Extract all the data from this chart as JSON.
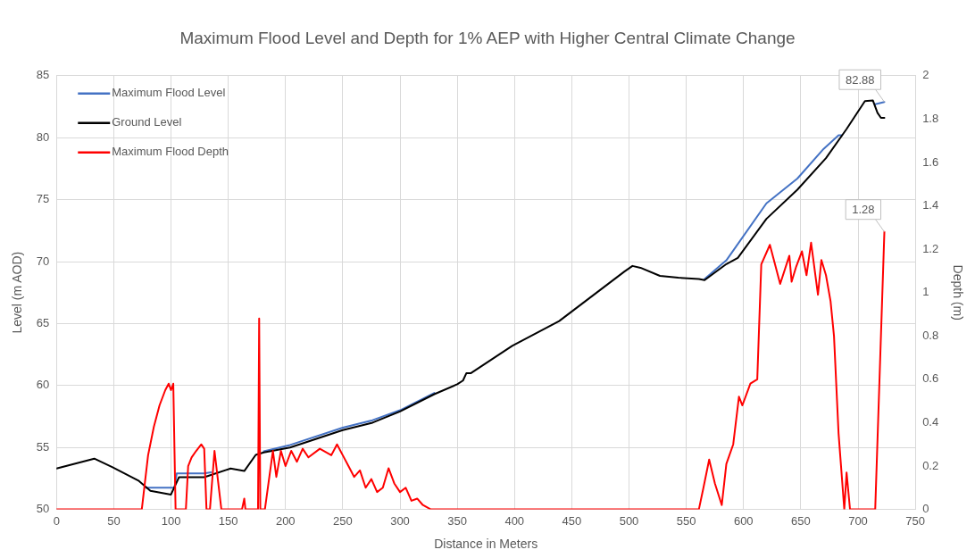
{
  "chart_data": {
    "type": "line",
    "title": "Maximum Flood Level and Depth for 1% AEP with Higher Central Climate Change",
    "xlabel": "Distance in Meters",
    "ylabel": "Level (m AOD)",
    "y2label": "Depth (m)",
    "xlim": [
      0,
      750
    ],
    "xticks": [
      0,
      50,
      100,
      150,
      200,
      250,
      300,
      350,
      400,
      450,
      500,
      550,
      600,
      650,
      700,
      750
    ],
    "ylim": [
      50,
      85
    ],
    "yticks": [
      50,
      55,
      60,
      65,
      70,
      75,
      80,
      85
    ],
    "y2lim": [
      0,
      2
    ],
    "y2ticks": [
      0,
      0.2,
      0.4,
      0.6,
      0.8,
      1,
      1.2,
      1.4,
      1.6,
      1.8,
      2
    ],
    "grid": true,
    "legend": "top left",
    "marker": "none",
    "line_style": "solid",
    "series": [
      {
        "name": "Maximum Flood Level",
        "color": "#4472c4",
        "value_labels": [
          null,
          null,
          null,
          null,
          null,
          null,
          null,
          null,
          null,
          null,
          null,
          null,
          null,
          null,
          null,
          null,
          null,
          null,
          null,
          null,
          null,
          null,
          null,
          "82.88"
        ],
        "x": [
          78,
          103,
          105,
          108,
          129,
          135,
          152,
          181,
          204,
          250,
          276,
          300,
          330,
          350,
          566,
          585,
          620,
          647,
          670,
          683,
          686,
          706,
          715,
          723
        ],
        "values": [
          51.75,
          51.75,
          52.9,
          52.9,
          52.9,
          53.0,
          null,
          54.7,
          55.2,
          56.6,
          57.2,
          58.0,
          59.4,
          null,
          68.6,
          70.1,
          74.7,
          76.7,
          79.1,
          80.2,
          80.2,
          null,
          82.7,
          82.88
        ]
      },
      {
        "name": "Ground Level",
        "color": "#000000",
        "x": [
          0,
          33,
          49,
          72,
          82,
          100,
          107,
          129,
          152,
          164,
          174,
          181,
          204,
          250,
          276,
          300,
          330,
          350,
          355,
          358,
          362,
          398,
          439,
          496,
          503,
          510,
          527,
          543,
          561,
          566,
          585,
          595,
          620,
          647,
          672,
          690,
          706,
          713,
          717,
          720,
          723
        ],
        "values": [
          53.3,
          54.1,
          53.4,
          52.3,
          51.5,
          51.2,
          52.6,
          52.6,
          53.3,
          53.1,
          54.4,
          54.6,
          55.0,
          56.4,
          57.0,
          57.9,
          59.3,
          60.1,
          60.4,
          61.0,
          61.0,
          63.2,
          65.2,
          69.2,
          69.65,
          69.5,
          68.85,
          68.7,
          68.6,
          68.5,
          69.8,
          70.3,
          73.45,
          75.8,
          78.35,
          80.7,
          82.95,
          83.0,
          82.0,
          81.6,
          81.6
        ]
      },
      {
        "name": "Maximum Flood Depth",
        "color": "#ff0000",
        "axis": "y2",
        "value_labels": [
          null,
          null,
          null,
          null,
          null,
          null,
          null,
          null,
          null,
          null,
          null,
          null,
          null,
          null,
          null,
          null,
          null,
          null,
          null,
          null,
          null,
          null,
          null,
          null,
          null,
          null,
          null,
          null,
          null,
          null,
          null,
          null,
          null,
          null,
          null,
          null,
          null,
          null,
          null,
          null,
          null,
          null,
          null,
          null,
          null,
          null,
          null,
          null,
          null,
          null,
          null,
          null,
          null,
          null,
          null,
          null,
          null,
          null,
          null,
          null,
          null,
          null,
          null,
          null,
          null,
          null,
          null,
          null,
          null,
          null,
          null,
          null,
          null,
          null,
          null,
          null,
          null,
          null,
          null,
          null,
          null,
          null,
          null,
          null,
          null,
          "1.28"
        ],
        "x": [
          0,
          74.5,
          80,
          85,
          90,
          95,
          98,
          100,
          102,
          104,
          113,
          115,
          118,
          122,
          126.5,
          129,
          131,
          134,
          138,
          144,
          162,
          164,
          165,
          176,
          177,
          178,
          182,
          189,
          192,
          196,
          200,
          205,
          210,
          215,
          220,
          230,
          240,
          245,
          250,
          255,
          260,
          265,
          270,
          275,
          280,
          285,
          290,
          295,
          300,
          305,
          310,
          315,
          320,
          327,
          561,
          565,
          570,
          575,
          581,
          585,
          591,
          596,
          599,
          606,
          612,
          615.5,
          623,
          626,
          632,
          640,
          642,
          646,
          651,
          655,
          659,
          665,
          668,
          672,
          676,
          679,
          683,
          688,
          690,
          693,
          715,
          723
        ],
        "values": [
          0,
          0,
          0.25,
          0.38,
          0.48,
          0.55,
          0.58,
          0.55,
          0.58,
          0,
          0,
          0.2,
          0.24,
          0.27,
          0.3,
          0.28,
          0,
          0,
          0.27,
          0,
          0,
          0.05,
          0,
          0,
          0.88,
          0,
          0,
          0.27,
          0.15,
          0.27,
          0.2,
          0.27,
          0.22,
          0.28,
          0.24,
          0.28,
          0.25,
          0.3,
          0.25,
          0.2,
          0.15,
          0.18,
          0.1,
          0.14,
          0.08,
          0.1,
          0.19,
          0.12,
          0.08,
          0.1,
          0.04,
          0.05,
          0.02,
          0,
          0,
          0.1,
          0.23,
          0.12,
          0.02,
          0.21,
          0.3,
          0.52,
          0.48,
          0.58,
          0.6,
          1.13,
          1.22,
          1.16,
          1.04,
          1.17,
          1.05,
          1.12,
          1.19,
          1.08,
          1.23,
          0.99,
          1.15,
          1.08,
          0.96,
          0.8,
          0.35,
          0,
          0.17,
          0,
          0,
          1.28
        ]
      }
    ]
  }
}
